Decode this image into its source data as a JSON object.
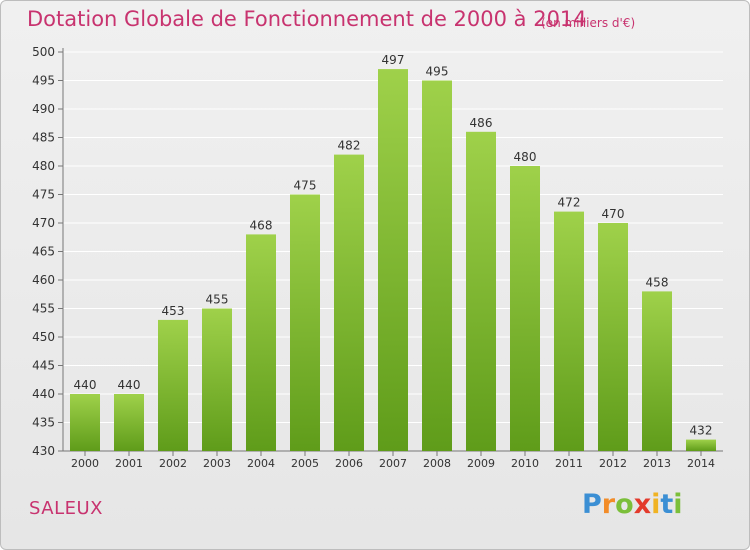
{
  "header": {
    "title": "Dotation Globale de Fonctionnement de 2000 à 2014",
    "unit_note": "(en milliers d'€)"
  },
  "footer": {
    "commune": "SALEUX",
    "logo_text": "Proxiti"
  },
  "colors": {
    "accent": "#c8336f",
    "bar_top": "#9fd14a",
    "bar_bottom": "#5f9c1a",
    "grid": "#ffffff",
    "text": "#333333"
  },
  "chart_data": {
    "type": "bar",
    "title": "Dotation Globale de Fonctionnement de 2000 à 2014",
    "subtitle": "(en milliers d'€)",
    "xlabel": "",
    "ylabel": "",
    "categories": [
      "2000",
      "2001",
      "2002",
      "2003",
      "2004",
      "2005",
      "2006",
      "2007",
      "2008",
      "2009",
      "2010",
      "2011",
      "2012",
      "2013",
      "2014"
    ],
    "values": [
      440,
      440,
      453,
      455,
      468,
      475,
      482,
      497,
      495,
      486,
      480,
      472,
      470,
      458,
      432
    ],
    "ylim": [
      430,
      500
    ],
    "yticks": [
      430,
      435,
      440,
      445,
      450,
      455,
      460,
      465,
      470,
      475,
      480,
      485,
      490,
      495,
      500
    ],
    "grid": true,
    "legend": "none"
  }
}
